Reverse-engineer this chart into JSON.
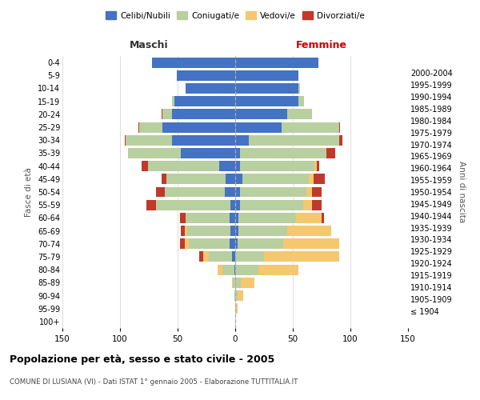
{
  "age_groups": [
    "100+",
    "95-99",
    "90-94",
    "85-89",
    "80-84",
    "75-79",
    "70-74",
    "65-69",
    "60-64",
    "55-59",
    "50-54",
    "45-49",
    "40-44",
    "35-39",
    "30-34",
    "25-29",
    "20-24",
    "15-19",
    "10-14",
    "5-9",
    "0-4"
  ],
  "birth_years": [
    "≤ 1904",
    "1905-1909",
    "1910-1914",
    "1915-1919",
    "1920-1924",
    "1925-1929",
    "1930-1934",
    "1935-1939",
    "1940-1944",
    "1945-1949",
    "1950-1954",
    "1955-1959",
    "1960-1964",
    "1965-1969",
    "1970-1974",
    "1975-1979",
    "1980-1984",
    "1985-1989",
    "1990-1994",
    "1995-1999",
    "2000-2004"
  ],
  "maschi": {
    "celibi": [
      0,
      0,
      0,
      0,
      1,
      3,
      5,
      4,
      5,
      4,
      9,
      8,
      14,
      47,
      55,
      63,
      55,
      53,
      43,
      51,
      72
    ],
    "coniugati": [
      0,
      0,
      1,
      2,
      10,
      20,
      35,
      38,
      38,
      65,
      52,
      52,
      62,
      46,
      40,
      20,
      8,
      2,
      0,
      0,
      0
    ],
    "vedovi": [
      0,
      0,
      0,
      1,
      4,
      5,
      4,
      2,
      0,
      0,
      0,
      0,
      0,
      0,
      0,
      0,
      0,
      0,
      0,
      0,
      0
    ],
    "divorziati": [
      0,
      0,
      0,
      0,
      0,
      3,
      4,
      3,
      5,
      8,
      8,
      4,
      5,
      0,
      1,
      1,
      1,
      0,
      0,
      0,
      0
    ]
  },
  "femmine": {
    "nubili": [
      0,
      0,
      0,
      0,
      0,
      0,
      2,
      3,
      3,
      4,
      4,
      6,
      4,
      4,
      12,
      40,
      45,
      55,
      55,
      55,
      72
    ],
    "coniugate": [
      0,
      0,
      2,
      5,
      20,
      25,
      40,
      42,
      50,
      55,
      58,
      58,
      65,
      75,
      78,
      50,
      22,
      5,
      1,
      0,
      0
    ],
    "vedove": [
      0,
      2,
      5,
      12,
      35,
      65,
      48,
      38,
      22,
      8,
      5,
      4,
      2,
      0,
      0,
      0,
      0,
      0,
      0,
      0,
      0
    ],
    "divorziate": [
      0,
      0,
      0,
      0,
      0,
      0,
      0,
      0,
      2,
      8,
      8,
      10,
      2,
      8,
      3,
      1,
      0,
      0,
      0,
      0,
      0
    ]
  },
  "colors": {
    "celibi_nubili": "#4472c4",
    "coniugati": "#b8cfa0",
    "vedovi": "#f5c76e",
    "divorziati": "#c0392b"
  },
  "title": "Popolazione per età, sesso e stato civile - 2005",
  "subtitle": "COMUNE DI LUSIANA (VI) - Dati ISTAT 1° gennaio 2005 - Elaborazione TUTTITALIA.IT",
  "ylabel_left": "Fasce di età",
  "ylabel_right": "Anni di nascita",
  "xlabel_maschi": "Maschi",
  "xlabel_femmine": "Femmine",
  "xlim": 150,
  "background_color": "#ffffff",
  "grid_color": "#d0d0d0"
}
